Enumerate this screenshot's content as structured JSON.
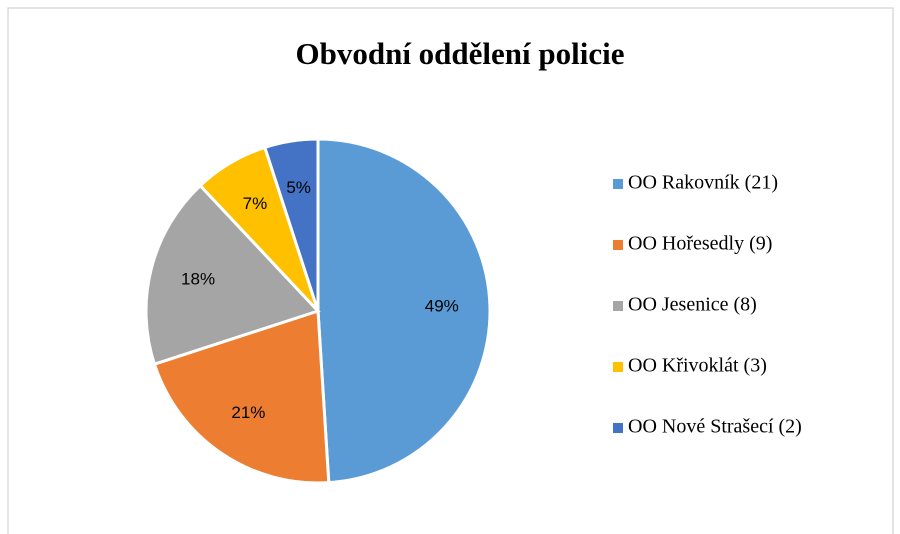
{
  "chart_data": {
    "type": "pie",
    "title": "Obvodní oddělení policie",
    "categories": [
      "OO Rakovník (21)",
      "OO Hořesedly (9)",
      "OO Jesenice (8)",
      "OO Křivoklát (3)",
      "OO Nové Strašecí (2)"
    ],
    "values": [
      49,
      21,
      18,
      7,
      5
    ],
    "value_labels": [
      "49%",
      "21%",
      "18%",
      "7%",
      "5%"
    ],
    "colors": [
      "#5b9bd5",
      "#ed7d31",
      "#a5a5a5",
      "#ffc000",
      "#4472c4"
    ],
    "legend": "right"
  }
}
